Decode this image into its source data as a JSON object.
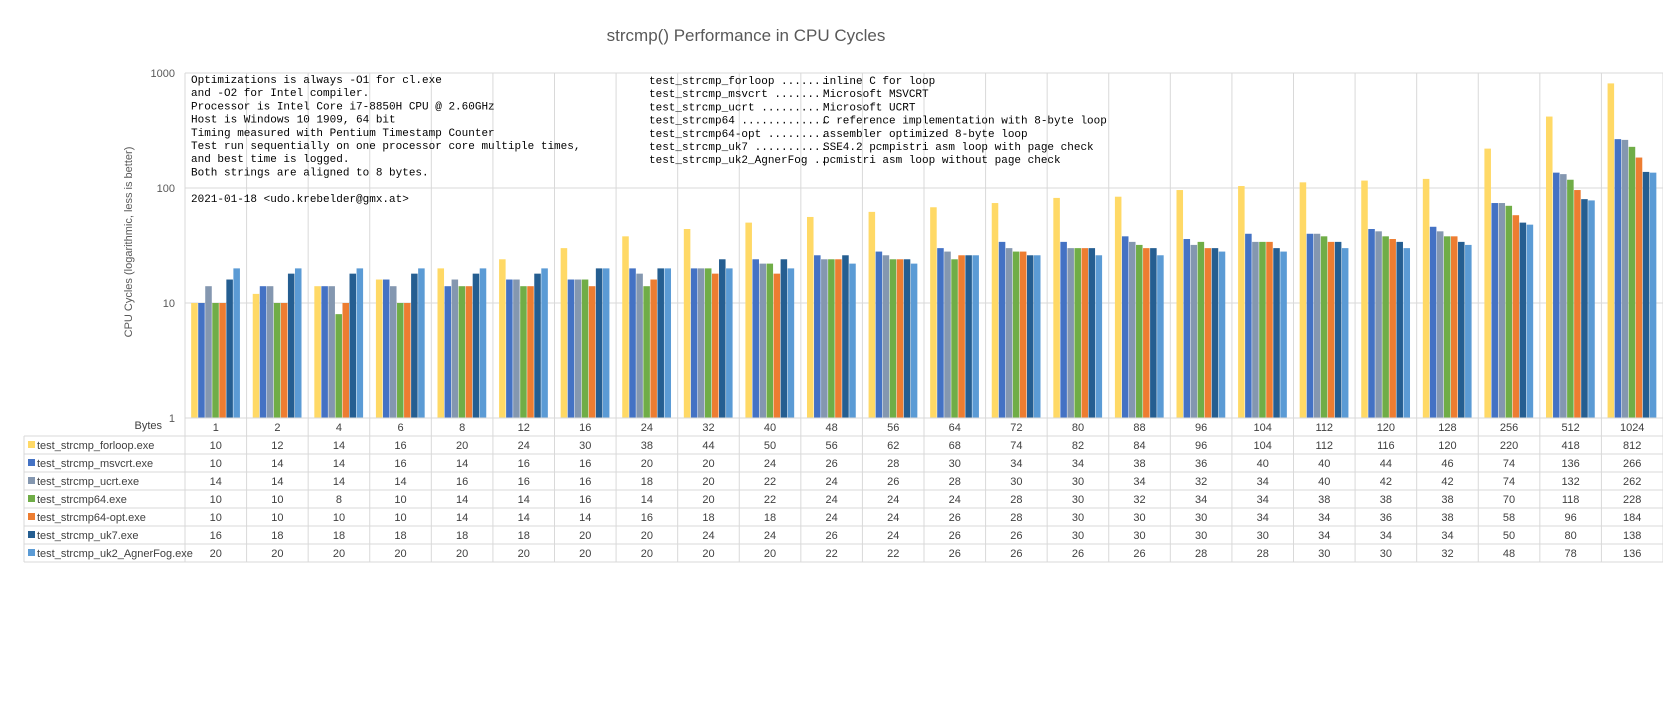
{
  "chart_data": {
    "type": "bar",
    "title": "strcmp() Performance in CPU Cycles",
    "ylabel": "CPU Cycles (logarithmic, less is better)",
    "xlabel": "Bytes",
    "yscale": "log",
    "ylim": [
      1,
      1000
    ],
    "yticks": [
      "1",
      "10",
      "100",
      "1000"
    ],
    "grid": true,
    "legend": "data-table-below",
    "categories": [
      "1",
      "2",
      "4",
      "6",
      "8",
      "12",
      "16",
      "24",
      "32",
      "40",
      "48",
      "56",
      "64",
      "72",
      "80",
      "88",
      "96",
      "104",
      "112",
      "120",
      "128",
      "256",
      "512",
      "1024"
    ],
    "series": [
      {
        "name": "test_strcmp_forloop.exe",
        "color": "#FFD966",
        "values": [
          10,
          12,
          14,
          16,
          20,
          24,
          30,
          38,
          44,
          50,
          56,
          62,
          68,
          74,
          82,
          84,
          96,
          104,
          112,
          116,
          120,
          220,
          418,
          812
        ]
      },
      {
        "name": "test_strcmp_msvcrt.exe",
        "color": "#4472C4",
        "values": [
          10,
          14,
          14,
          16,
          14,
          16,
          16,
          20,
          20,
          24,
          26,
          28,
          30,
          34,
          34,
          38,
          36,
          40,
          40,
          44,
          46,
          74,
          136,
          266
        ]
      },
      {
        "name": "test_strcmp_ucrt.exe",
        "color": "#8497B0",
        "values": [
          14,
          14,
          14,
          14,
          16,
          16,
          16,
          18,
          20,
          22,
          24,
          26,
          28,
          30,
          30,
          34,
          32,
          34,
          40,
          42,
          42,
          74,
          132,
          262
        ]
      },
      {
        "name": "test_strcmp64.exe",
        "color": "#70AD47",
        "values": [
          10,
          10,
          8,
          10,
          14,
          14,
          16,
          14,
          20,
          22,
          24,
          24,
          24,
          28,
          30,
          32,
          34,
          34,
          38,
          38,
          38,
          70,
          118,
          228
        ]
      },
      {
        "name": "test_strcmp64-opt.exe",
        "color": "#ED7D31",
        "values": [
          10,
          10,
          10,
          10,
          14,
          14,
          14,
          16,
          18,
          18,
          24,
          24,
          26,
          28,
          30,
          30,
          30,
          34,
          34,
          36,
          38,
          58,
          96,
          184
        ]
      },
      {
        "name": "test_strcmp_uk7.exe",
        "color": "#255E91",
        "values": [
          16,
          18,
          18,
          18,
          18,
          18,
          20,
          20,
          24,
          24,
          26,
          24,
          26,
          26,
          30,
          30,
          30,
          30,
          34,
          34,
          34,
          50,
          80,
          138
        ]
      },
      {
        "name": "test_strcmp_uk2_AgnerFog.exe",
        "color": "#5B9BD5",
        "values": [
          20,
          20,
          20,
          20,
          20,
          20,
          20,
          20,
          20,
          20,
          22,
          22,
          26,
          26,
          26,
          26,
          28,
          28,
          30,
          30,
          32,
          48,
          78,
          136
        ]
      }
    ],
    "annotations_left": [
      "Optimizations is always -O1 for cl.exe",
      "and -O2 for Intel compiler.",
      "Processor is Intel Core i7-8850H CPU @ 2.60GHz",
      "Host is Windows 10 1909, 64 bit",
      "Timing measured with Pentium Timestamp Counter",
      "Test run sequentially on one processor core multiple times,",
      "and best time is logged.",
      "Both strings are aligned to 8 bytes.",
      "",
      "2021-01-18  <udo.krebelder@gmx.at>"
    ],
    "annotations_right": [
      {
        "name": "test_strcmp_forloop .......",
        "desc": "inline C for loop"
      },
      {
        "name": "test_strcmp_msvcrt ........",
        "desc": "Microsoft MSVCRT"
      },
      {
        "name": "test_strcmp_ucrt ..........",
        "desc": "Microsoft UCRT"
      },
      {
        "name": "test_strcmp64 .............",
        "desc": "C reference implementation with 8-byte loop"
      },
      {
        "name": "test_strcmp64-opt .........",
        "desc": "assembler optimized 8-byte loop"
      },
      {
        "name": "test_strcmp_uk7 ...........",
        "desc": "SSE4.2 pcmpistri asm loop with page check"
      },
      {
        "name": "test_strcmp_uk2_AgnerFog ..",
        "desc": "pcmistri asm loop without page check"
      }
    ]
  }
}
